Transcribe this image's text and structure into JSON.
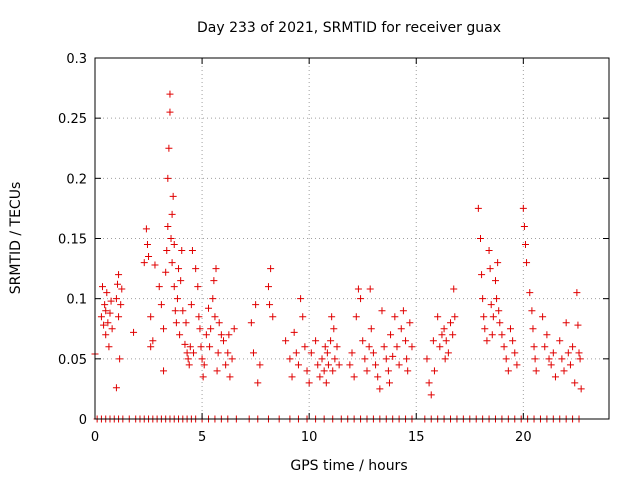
{
  "chart_data": {
    "type": "scatter",
    "title": "Day 233 of 2021, SRMTID for receiver guax",
    "xlabel": "GPS time / hours",
    "ylabel": "SRMTID / TECUs",
    "xlim": [
      0,
      24
    ],
    "ylim": [
      0,
      0.3
    ],
    "xticks": [
      0,
      5,
      10,
      15,
      20
    ],
    "xtick_labels": [
      "0",
      "5",
      "10",
      "15",
      "20"
    ],
    "yticks": [
      0,
      0.05,
      0.1,
      0.15,
      0.2,
      0.25,
      0.3
    ],
    "ytick_labels": [
      "0",
      "0.05",
      "0.1",
      "0.15",
      "0.2",
      "0.25",
      "0.3"
    ],
    "grid": true,
    "marker": "+",
    "color": "#e00000",
    "series": [
      {
        "name": "SRMTID",
        "points": [
          [
            0.0,
            0.054
          ],
          [
            0.3,
            0.085
          ],
          [
            0.35,
            0.11
          ],
          [
            0.4,
            0.078
          ],
          [
            0.45,
            0.095
          ],
          [
            0.5,
            0.07
          ],
          [
            0.5,
            0.09
          ],
          [
            0.55,
            0.105
          ],
          [
            0.6,
            0.08
          ],
          [
            0.65,
            0.06
          ],
          [
            0.7,
            0.088
          ],
          [
            0.75,
            0.098
          ],
          [
            0.8,
            0.075
          ],
          [
            1.0,
            0.1
          ],
          [
            1.05,
            0.112
          ],
          [
            1.1,
            0.12
          ],
          [
            1.1,
            0.085
          ],
          [
            1.15,
            0.05
          ],
          [
            1.0,
            0.026
          ],
          [
            1.2,
            0.095
          ],
          [
            1.25,
            0.108
          ],
          [
            1.8,
            0.072
          ],
          [
            2.3,
            0.13
          ],
          [
            2.4,
            0.158
          ],
          [
            2.45,
            0.145
          ],
          [
            2.5,
            0.135
          ],
          [
            2.6,
            0.06
          ],
          [
            2.6,
            0.085
          ],
          [
            2.7,
            0.065
          ],
          [
            2.8,
            0.128
          ],
          [
            3.0,
            0.11
          ],
          [
            3.1,
            0.095
          ],
          [
            3.2,
            0.04
          ],
          [
            3.2,
            0.075
          ],
          [
            3.3,
            0.122
          ],
          [
            3.35,
            0.14
          ],
          [
            3.4,
            0.16
          ],
          [
            3.4,
            0.2
          ],
          [
            3.45,
            0.225
          ],
          [
            3.5,
            0.255
          ],
          [
            3.5,
            0.27
          ],
          [
            3.55,
            0.15
          ],
          [
            3.6,
            0.17
          ],
          [
            3.6,
            0.13
          ],
          [
            3.65,
            0.185
          ],
          [
            3.7,
            0.145
          ],
          [
            3.7,
            0.11
          ],
          [
            3.75,
            0.09
          ],
          [
            3.8,
            0.08
          ],
          [
            3.85,
            0.1
          ],
          [
            3.9,
            0.125
          ],
          [
            3.95,
            0.07
          ],
          [
            4.0,
            0.115
          ],
          [
            4.05,
            0.14
          ],
          [
            4.1,
            0.09
          ],
          [
            4.2,
            0.062
          ],
          [
            4.25,
            0.08
          ],
          [
            4.3,
            0.055
          ],
          [
            4.35,
            0.05
          ],
          [
            4.4,
            0.045
          ],
          [
            4.45,
            0.06
          ],
          [
            4.5,
            0.095
          ],
          [
            4.55,
            0.14
          ],
          [
            4.6,
            0.055
          ],
          [
            4.7,
            0.125
          ],
          [
            4.8,
            0.11
          ],
          [
            4.85,
            0.085
          ],
          [
            4.9,
            0.075
          ],
          [
            4.95,
            0.06
          ],
          [
            5.0,
            0.05
          ],
          [
            5.05,
            0.035
          ],
          [
            5.1,
            0.045
          ],
          [
            5.2,
            0.07
          ],
          [
            5.3,
            0.092
          ],
          [
            5.35,
            0.06
          ],
          [
            5.4,
            0.075
          ],
          [
            5.5,
            0.1
          ],
          [
            5.55,
            0.115
          ],
          [
            5.6,
            0.085
          ],
          [
            5.65,
            0.125
          ],
          [
            5.7,
            0.04
          ],
          [
            5.75,
            0.055
          ],
          [
            5.8,
            0.08
          ],
          [
            5.9,
            0.07
          ],
          [
            6.0,
            0.065
          ],
          [
            6.1,
            0.045
          ],
          [
            6.2,
            0.055
          ],
          [
            6.25,
            0.07
          ],
          [
            6.3,
            0.035
          ],
          [
            6.4,
            0.05
          ],
          [
            6.5,
            0.075
          ],
          [
            7.3,
            0.08
          ],
          [
            7.4,
            0.055
          ],
          [
            7.5,
            0.095
          ],
          [
            7.6,
            0.03
          ],
          [
            7.7,
            0.045
          ],
          [
            8.1,
            0.11
          ],
          [
            8.15,
            0.095
          ],
          [
            8.2,
            0.125
          ],
          [
            8.3,
            0.085
          ],
          [
            8.9,
            0.065
          ],
          [
            9.1,
            0.05
          ],
          [
            9.2,
            0.035
          ],
          [
            9.3,
            0.072
          ],
          [
            9.4,
            0.055
          ],
          [
            9.5,
            0.045
          ],
          [
            9.6,
            0.1
          ],
          [
            9.7,
            0.085
          ],
          [
            9.8,
            0.06
          ],
          [
            9.9,
            0.04
          ],
          [
            10.0,
            0.03
          ],
          [
            10.1,
            0.055
          ],
          [
            10.3,
            0.065
          ],
          [
            10.4,
            0.045
          ],
          [
            10.5,
            0.035
          ],
          [
            10.6,
            0.05
          ],
          [
            10.7,
            0.04
          ],
          [
            10.75,
            0.06
          ],
          [
            10.8,
            0.03
          ],
          [
            10.85,
            0.055
          ],
          [
            10.9,
            0.045
          ],
          [
            11.0,
            0.065
          ],
          [
            11.05,
            0.085
          ],
          [
            11.1,
            0.04
          ],
          [
            11.15,
            0.075
          ],
          [
            11.2,
            0.05
          ],
          [
            11.3,
            0.06
          ],
          [
            11.4,
            0.045
          ],
          [
            11.9,
            0.045
          ],
          [
            12.0,
            0.055
          ],
          [
            12.1,
            0.035
          ],
          [
            12.2,
            0.085
          ],
          [
            12.3,
            0.108
          ],
          [
            12.4,
            0.1
          ],
          [
            12.5,
            0.065
          ],
          [
            12.6,
            0.05
          ],
          [
            12.7,
            0.04
          ],
          [
            12.8,
            0.06
          ],
          [
            12.85,
            0.108
          ],
          [
            12.9,
            0.075
          ],
          [
            13.0,
            0.055
          ],
          [
            13.1,
            0.045
          ],
          [
            13.2,
            0.035
          ],
          [
            13.3,
            0.025
          ],
          [
            13.4,
            0.09
          ],
          [
            13.5,
            0.06
          ],
          [
            13.6,
            0.05
          ],
          [
            13.7,
            0.04
          ],
          [
            13.75,
            0.03
          ],
          [
            13.8,
            0.07
          ],
          [
            13.9,
            0.052
          ],
          [
            14.0,
            0.085
          ],
          [
            14.1,
            0.06
          ],
          [
            14.2,
            0.045
          ],
          [
            14.3,
            0.075
          ],
          [
            14.4,
            0.09
          ],
          [
            14.5,
            0.065
          ],
          [
            14.55,
            0.05
          ],
          [
            14.6,
            0.04
          ],
          [
            14.7,
            0.08
          ],
          [
            14.8,
            0.06
          ],
          [
            15.5,
            0.05
          ],
          [
            15.6,
            0.03
          ],
          [
            15.7,
            0.02
          ],
          [
            15.8,
            0.065
          ],
          [
            15.85,
            0.04
          ],
          [
            16.0,
            0.085
          ],
          [
            16.1,
            0.06
          ],
          [
            16.2,
            0.07
          ],
          [
            16.3,
            0.075
          ],
          [
            16.35,
            0.05
          ],
          [
            16.4,
            0.065
          ],
          [
            16.5,
            0.055
          ],
          [
            16.6,
            0.08
          ],
          [
            16.7,
            0.07
          ],
          [
            16.75,
            0.108
          ],
          [
            16.8,
            0.085
          ],
          [
            17.9,
            0.175
          ],
          [
            18.0,
            0.15
          ],
          [
            18.05,
            0.12
          ],
          [
            18.1,
            0.1
          ],
          [
            18.15,
            0.085
          ],
          [
            18.2,
            0.075
          ],
          [
            18.3,
            0.065
          ],
          [
            18.4,
            0.14
          ],
          [
            18.45,
            0.125
          ],
          [
            18.5,
            0.095
          ],
          [
            18.55,
            0.07
          ],
          [
            18.6,
            0.085
          ],
          [
            18.7,
            0.115
          ],
          [
            18.75,
            0.1
          ],
          [
            18.8,
            0.13
          ],
          [
            18.85,
            0.09
          ],
          [
            18.9,
            0.08
          ],
          [
            19.0,
            0.07
          ],
          [
            19.1,
            0.06
          ],
          [
            19.2,
            0.05
          ],
          [
            19.3,
            0.04
          ],
          [
            19.4,
            0.075
          ],
          [
            19.5,
            0.065
          ],
          [
            19.6,
            0.055
          ],
          [
            19.7,
            0.045
          ],
          [
            20.0,
            0.175
          ],
          [
            20.05,
            0.16
          ],
          [
            20.1,
            0.145
          ],
          [
            20.15,
            0.13
          ],
          [
            20.3,
            0.105
          ],
          [
            20.4,
            0.09
          ],
          [
            20.45,
            0.075
          ],
          [
            20.5,
            0.06
          ],
          [
            20.55,
            0.05
          ],
          [
            20.6,
            0.04
          ],
          [
            20.9,
            0.085
          ],
          [
            21.0,
            0.06
          ],
          [
            21.1,
            0.07
          ],
          [
            21.2,
            0.05
          ],
          [
            21.3,
            0.045
          ],
          [
            21.4,
            0.055
          ],
          [
            21.5,
            0.035
          ],
          [
            21.7,
            0.065
          ],
          [
            21.8,
            0.05
          ],
          [
            21.9,
            0.04
          ],
          [
            22.0,
            0.08
          ],
          [
            22.1,
            0.055
          ],
          [
            22.2,
            0.045
          ],
          [
            22.3,
            0.06
          ],
          [
            22.4,
            0.03
          ],
          [
            22.5,
            0.105
          ],
          [
            22.55,
            0.078
          ],
          [
            22.6,
            0.055
          ],
          [
            22.65,
            0.05
          ],
          [
            22.7,
            0.025
          ],
          [
            0.1,
            0
          ],
          [
            0.3,
            0
          ],
          [
            0.5,
            0
          ],
          [
            0.7,
            0
          ],
          [
            0.9,
            0
          ],
          [
            1.1,
            0
          ],
          [
            1.3,
            0
          ],
          [
            1.6,
            0
          ],
          [
            1.9,
            0
          ],
          [
            2.1,
            0
          ],
          [
            2.3,
            0
          ],
          [
            2.5,
            0
          ],
          [
            2.7,
            0
          ],
          [
            2.9,
            0
          ],
          [
            3.1,
            0
          ],
          [
            3.3,
            0
          ],
          [
            3.5,
            0
          ],
          [
            3.7,
            0
          ],
          [
            3.9,
            0
          ],
          [
            4.1,
            0
          ],
          [
            4.3,
            0
          ],
          [
            4.5,
            0
          ],
          [
            4.7,
            0
          ],
          [
            5.0,
            0
          ],
          [
            5.3,
            0
          ],
          [
            5.6,
            0
          ],
          [
            5.9,
            0
          ],
          [
            6.2,
            0
          ],
          [
            6.6,
            0
          ],
          [
            7.2,
            0
          ],
          [
            7.6,
            0
          ],
          [
            8.1,
            0
          ],
          [
            8.6,
            0
          ],
          [
            9.1,
            0
          ],
          [
            9.5,
            0
          ],
          [
            9.9,
            0
          ],
          [
            10.3,
            0
          ],
          [
            10.7,
            0
          ],
          [
            11.1,
            0
          ],
          [
            11.5,
            0
          ],
          [
            11.8,
            0
          ],
          [
            12.1,
            0
          ],
          [
            12.4,
            0
          ],
          [
            12.7,
            0
          ],
          [
            13.0,
            0
          ],
          [
            13.3,
            0
          ],
          [
            13.6,
            0
          ],
          [
            13.9,
            0
          ],
          [
            14.2,
            0
          ],
          [
            14.5,
            0
          ],
          [
            14.8,
            0
          ],
          [
            15.4,
            0
          ],
          [
            15.7,
            0
          ],
          [
            16.0,
            0
          ],
          [
            16.3,
            0
          ],
          [
            16.6,
            0
          ],
          [
            16.9,
            0
          ],
          [
            17.2,
            0
          ],
          [
            17.5,
            0
          ],
          [
            17.8,
            0
          ],
          [
            18.1,
            0
          ],
          [
            18.4,
            0
          ],
          [
            18.7,
            0
          ],
          [
            19.0,
            0
          ],
          [
            19.3,
            0
          ],
          [
            19.6,
            0
          ],
          [
            19.9,
            0
          ],
          [
            20.2,
            0
          ],
          [
            20.5,
            0
          ],
          [
            20.8,
            0
          ],
          [
            21.1,
            0
          ],
          [
            21.4,
            0
          ],
          [
            21.7,
            0
          ],
          [
            22.0,
            0
          ],
          [
            22.3,
            0
          ],
          [
            22.6,
            0
          ]
        ]
      }
    ]
  }
}
